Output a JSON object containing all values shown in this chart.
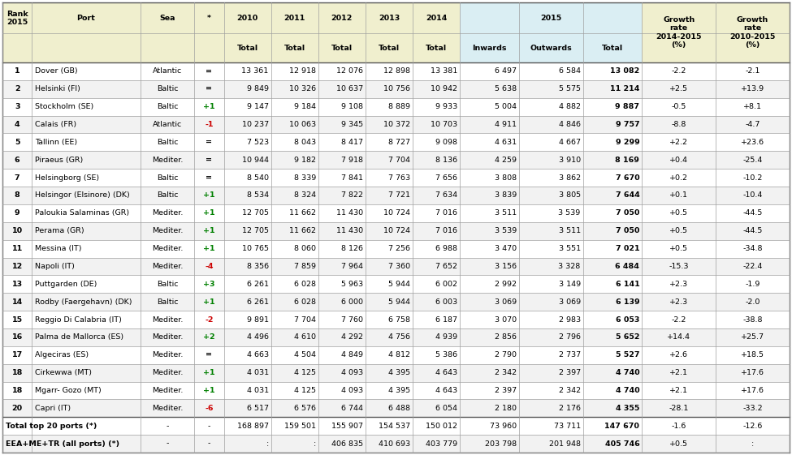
{
  "header_bg": "#f0efce",
  "header_2015_bg": "#daeef3",
  "row_bg_odd": "#ffffff",
  "row_bg_even": "#f2f2f2",
  "total_row_bg": "#ffffff",
  "border_color": "#a0a0a0",
  "thick_border": "#555555",
  "rows": [
    [
      "1",
      "Dover (GB)",
      "Atlantic",
      "=",
      "13 361",
      "12 918",
      "12 076",
      "12 898",
      "13 381",
      "6 497",
      "6 584",
      "13 082",
      "-2.2",
      "-2.1"
    ],
    [
      "2",
      "Helsinki (FI)",
      "Baltic",
      "=",
      "9 849",
      "10 326",
      "10 637",
      "10 756",
      "10 942",
      "5 638",
      "5 575",
      "11 214",
      "+2.5",
      "+13.9"
    ],
    [
      "3",
      "Stockholm (SE)",
      "Baltic",
      "+1",
      "9 147",
      "9 184",
      "9 108",
      "8 889",
      "9 933",
      "5 004",
      "4 882",
      "9 887",
      "-0.5",
      "+8.1"
    ],
    [
      "4",
      "Calais (FR)",
      "Atlantic",
      "-1",
      "10 237",
      "10 063",
      "9 345",
      "10 372",
      "10 703",
      "4 911",
      "4 846",
      "9 757",
      "-8.8",
      "-4.7"
    ],
    [
      "5",
      "Tallinn (EE)",
      "Baltic",
      "=",
      "7 523",
      "8 043",
      "8 417",
      "8 727",
      "9 098",
      "4 631",
      "4 667",
      "9 299",
      "+2.2",
      "+23.6"
    ],
    [
      "6",
      "Piraeus (GR)",
      "Mediter.",
      "=",
      "10 944",
      "9 182",
      "7 918",
      "7 704",
      "8 136",
      "4 259",
      "3 910",
      "8 169",
      "+0.4",
      "-25.4"
    ],
    [
      "7",
      "Helsingborg (SE)",
      "Baltic",
      "=",
      "8 540",
      "8 339",
      "7 841",
      "7 763",
      "7 656",
      "3 808",
      "3 862",
      "7 670",
      "+0.2",
      "-10.2"
    ],
    [
      "8",
      "Helsingor (Elsinore) (DK)",
      "Baltic",
      "+1",
      "8 534",
      "8 324",
      "7 822",
      "7 721",
      "7 634",
      "3 839",
      "3 805",
      "7 644",
      "+0.1",
      "-10.4"
    ],
    [
      "9",
      "Paloukia Salaminas (GR)",
      "Mediter.",
      "+1",
      "12 705",
      "11 662",
      "11 430",
      "10 724",
      "7 016",
      "3 511",
      "3 539",
      "7 050",
      "+0.5",
      "-44.5"
    ],
    [
      "10",
      "Perama (GR)",
      "Mediter.",
      "+1",
      "12 705",
      "11 662",
      "11 430",
      "10 724",
      "7 016",
      "3 539",
      "3 511",
      "7 050",
      "+0.5",
      "-44.5"
    ],
    [
      "11",
      "Messina (IT)",
      "Mediter.",
      "+1",
      "10 765",
      "8 060",
      "8 126",
      "7 256",
      "6 988",
      "3 470",
      "3 551",
      "7 021",
      "+0.5",
      "-34.8"
    ],
    [
      "12",
      "Napoli (IT)",
      "Mediter.",
      "-4",
      "8 356",
      "7 859",
      "7 964",
      "7 360",
      "7 652",
      "3 156",
      "3 328",
      "6 484",
      "-15.3",
      "-22.4"
    ],
    [
      "13",
      "Puttgarden (DE)",
      "Baltic",
      "+3",
      "6 261",
      "6 028",
      "5 963",
      "5 944",
      "6 002",
      "2 992",
      "3 149",
      "6 141",
      "+2.3",
      "-1.9"
    ],
    [
      "14",
      "Rodby (Faergehavn) (DK)",
      "Baltic",
      "+1",
      "6 261",
      "6 028",
      "6 000",
      "5 944",
      "6 003",
      "3 069",
      "3 069",
      "6 139",
      "+2.3",
      "-2.0"
    ],
    [
      "15",
      "Reggio Di Calabria (IT)",
      "Mediter.",
      "-2",
      "9 891",
      "7 704",
      "7 760",
      "6 758",
      "6 187",
      "3 070",
      "2 983",
      "6 053",
      "-2.2",
      "-38.8"
    ],
    [
      "16",
      "Palma de Mallorca (ES)",
      "Mediter.",
      "+2",
      "4 496",
      "4 610",
      "4 292",
      "4 756",
      "4 939",
      "2 856",
      "2 796",
      "5 652",
      "+14.4",
      "+25.7"
    ],
    [
      "17",
      "Algeciras (ES)",
      "Mediter.",
      "=",
      "4 663",
      "4 504",
      "4 849",
      "4 812",
      "5 386",
      "2 790",
      "2 737",
      "5 527",
      "+2.6",
      "+18.5"
    ],
    [
      "18",
      "Cirkewwa (MT)",
      "Mediter.",
      "+1",
      "4 031",
      "4 125",
      "4 093",
      "4 395",
      "4 643",
      "2 342",
      "2 397",
      "4 740",
      "+2.1",
      "+17.6"
    ],
    [
      "18",
      "Mgarr- Gozo (MT)",
      "Mediter.",
      "+1",
      "4 031",
      "4 125",
      "4 093",
      "4 395",
      "4 643",
      "2 397",
      "2 342",
      "4 740",
      "+2.1",
      "+17.6"
    ],
    [
      "20",
      "Capri (IT)",
      "Mediter.",
      "-6",
      "6 517",
      "6 576",
      "6 744",
      "6 488",
      "6 054",
      "2 180",
      "2 176",
      "4 355",
      "-28.1",
      "-33.2"
    ]
  ],
  "total_row": [
    "Total top 20 ports (*)",
    "-",
    "-",
    "168 897",
    "159 501",
    "155 907",
    "154 537",
    "150 012",
    "73 960",
    "73 711",
    "147 670",
    "-1.6",
    "-12.6"
  ],
  "eea_row": [
    "EEA+ME+TR (all ports) (*)",
    "-",
    "-",
    ":",
    ":",
    "406 835",
    "410 693",
    "403 779",
    "203 798",
    "201 948",
    "405 746",
    "+0.5",
    ":"
  ],
  "star_pos_color": "#008000",
  "star_neg_color": "#cc0000",
  "star_eq_color": "#000000"
}
